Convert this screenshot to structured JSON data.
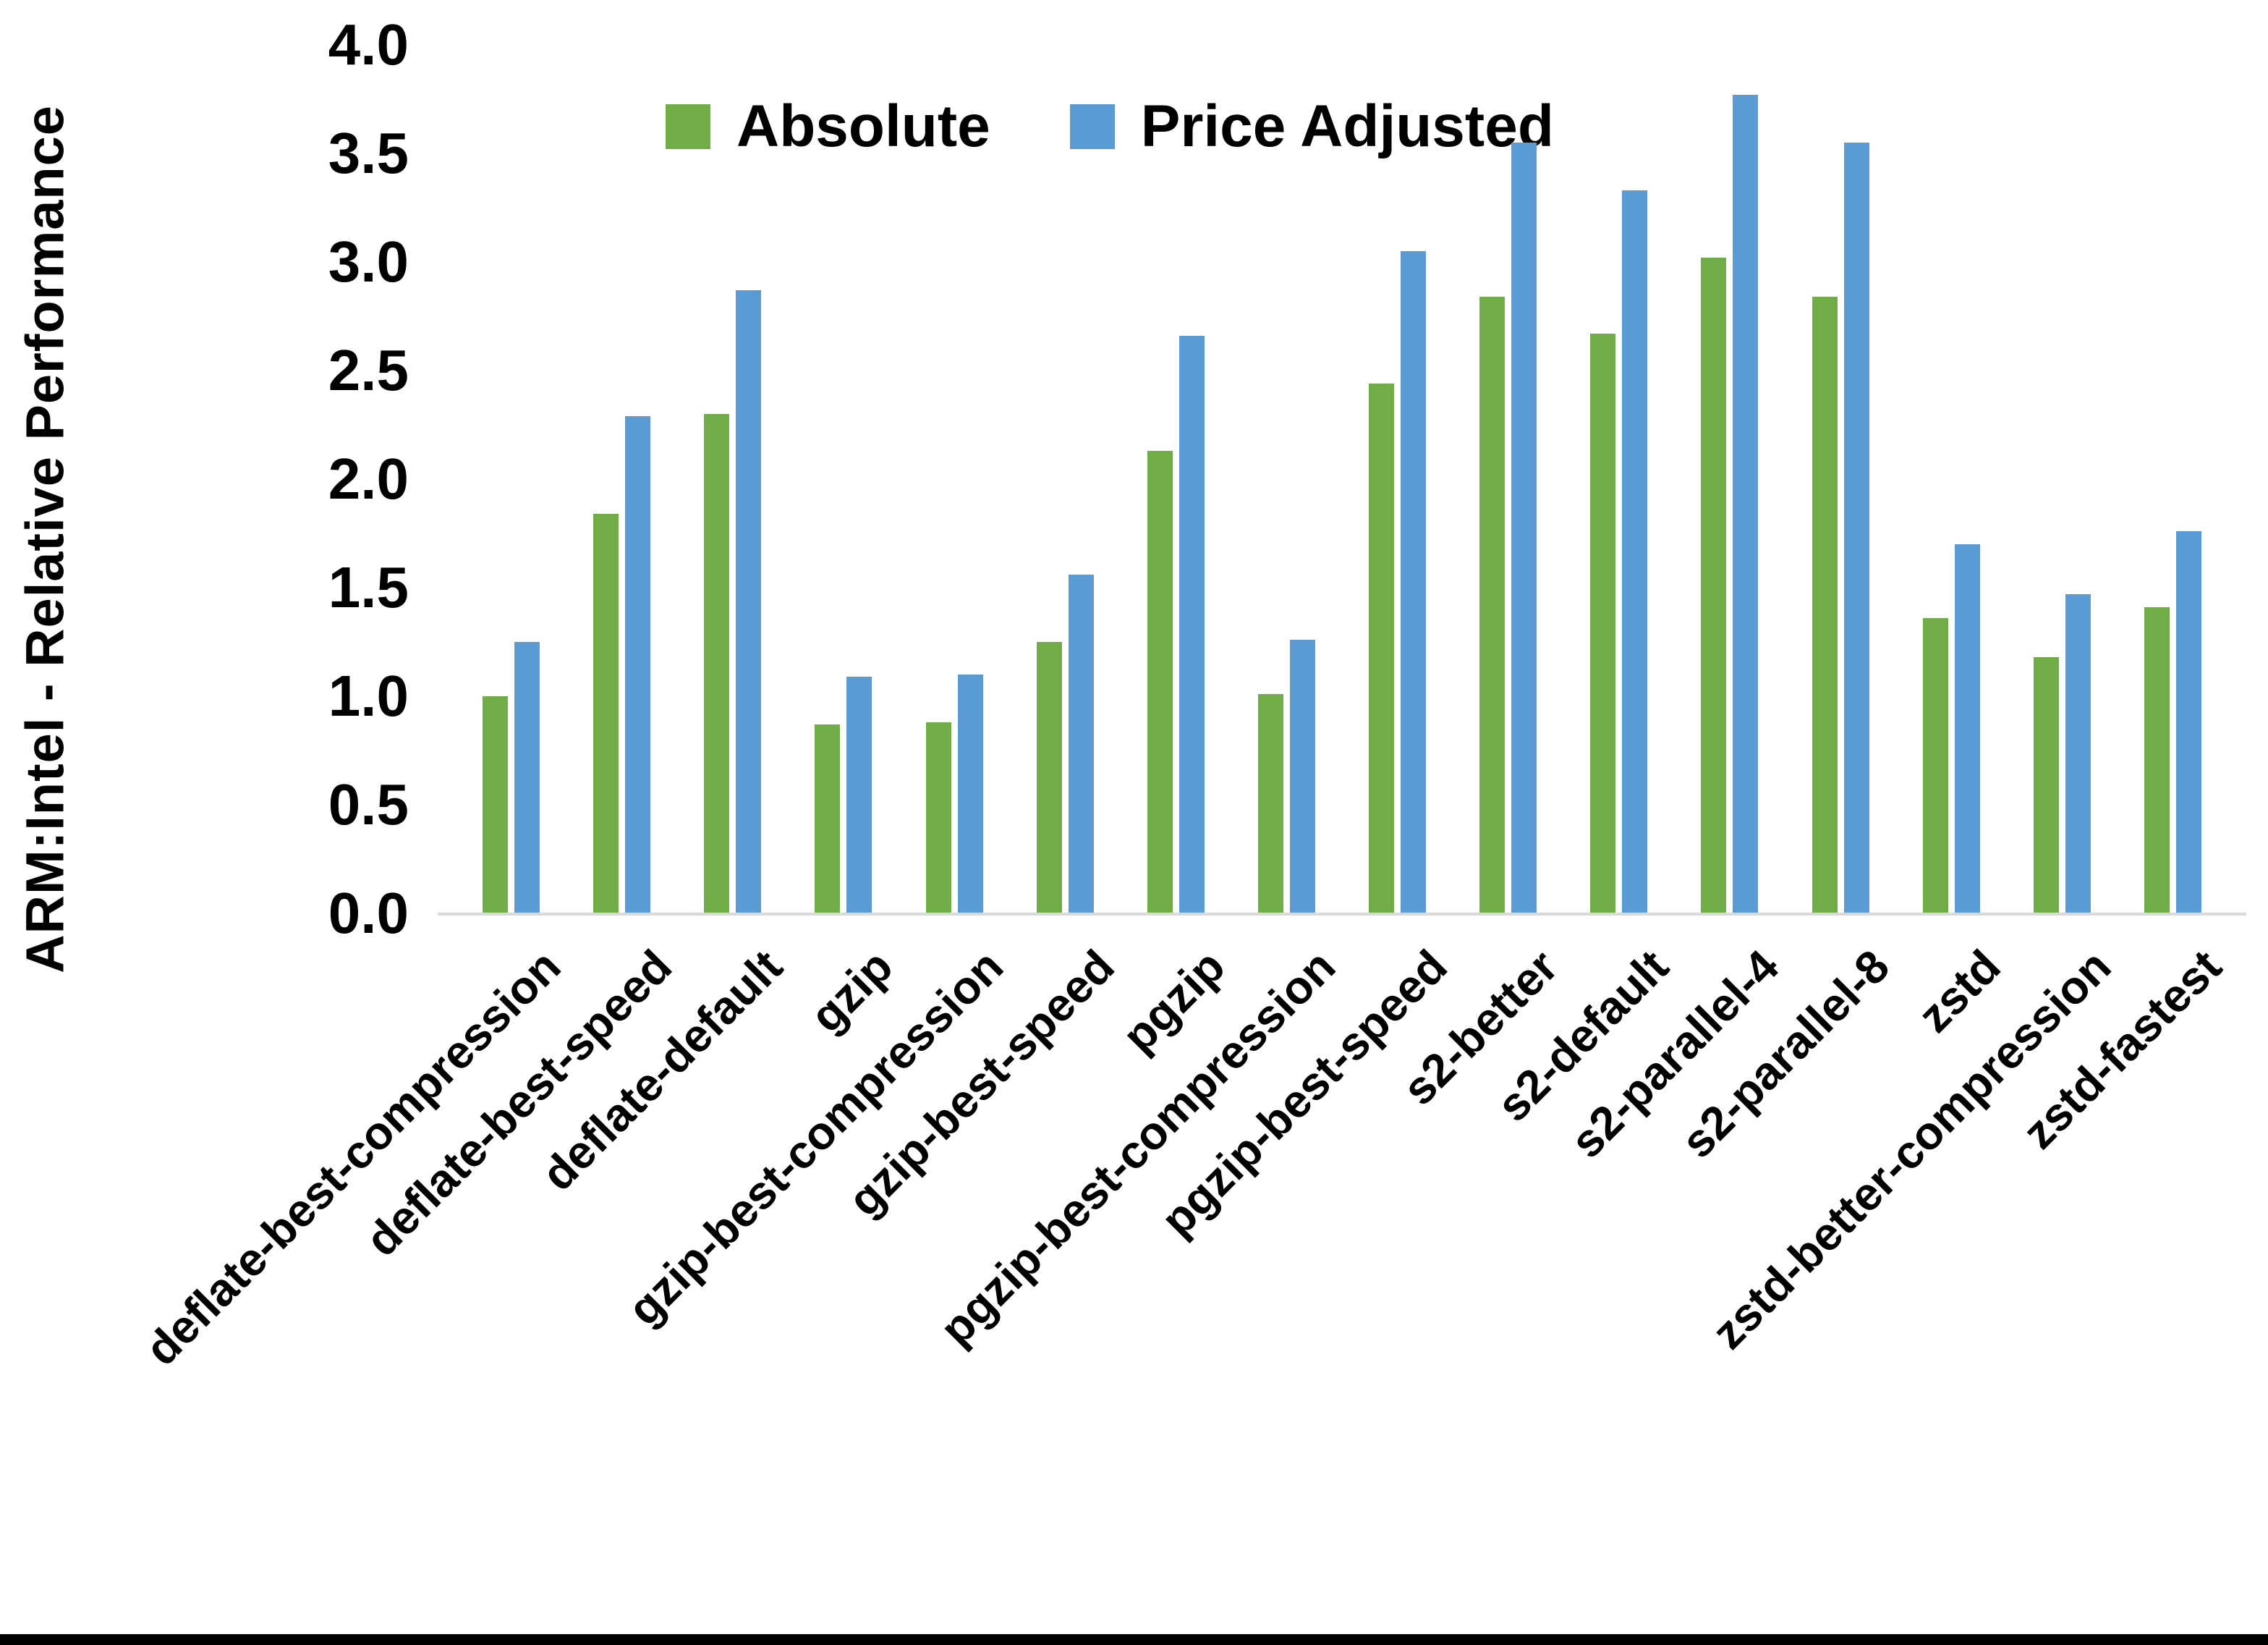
{
  "figure": {
    "y_axis_title": "ARM:Intel - Relative Performance",
    "background_color": "#ffffff",
    "axis_line_color": "#d9d9d9",
    "bottom_edge_bar_color": "#000000"
  },
  "legend": {
    "items": [
      {
        "label": "Absolute",
        "color": "#70AD47",
        "swatch": "green-square-icon"
      },
      {
        "label": "Price Adjusted",
        "color": "#5B9BD5",
        "swatch": "blue-square-icon"
      }
    ],
    "position": "top"
  },
  "chart_data": {
    "type": "bar",
    "title": "",
    "xlabel": "",
    "ylabel": "ARM:Intel - Relative Performance",
    "ylim": [
      0.0,
      4.0
    ],
    "y_tick_step": 0.5,
    "y_tick_labels": [
      "0.0",
      "0.5",
      "1.0",
      "1.5",
      "2.0",
      "2.5",
      "3.0",
      "3.5",
      "4.0"
    ],
    "grid": false,
    "legend_position": "top",
    "categories": [
      "deflate-best-compression",
      "deflate-best-speed",
      "deflate-default",
      "gzip",
      "gzip-best-compression",
      "gzip-best-speed",
      "pgzip",
      "pgzip-best-compression",
      "pgzip-best-speed",
      "s2-better",
      "s2-default",
      "s2-parallel-4",
      "s2-parallel-8",
      "zstd",
      "zstd-better-compression",
      "zstd-fastest"
    ],
    "series": [
      {
        "name": "Absolute",
        "color": "#70AD47",
        "values": [
          1.0,
          1.84,
          2.3,
          0.87,
          0.88,
          1.25,
          2.13,
          1.01,
          2.44,
          2.84,
          2.67,
          3.02,
          2.84,
          1.36,
          1.18,
          1.41
        ]
      },
      {
        "name": "Price Adjusted",
        "color": "#5B9BD5",
        "values": [
          1.25,
          2.29,
          2.87,
          1.09,
          1.1,
          1.56,
          2.66,
          1.26,
          3.05,
          3.55,
          3.33,
          3.77,
          3.55,
          1.7,
          1.47,
          1.76
        ]
      }
    ]
  }
}
